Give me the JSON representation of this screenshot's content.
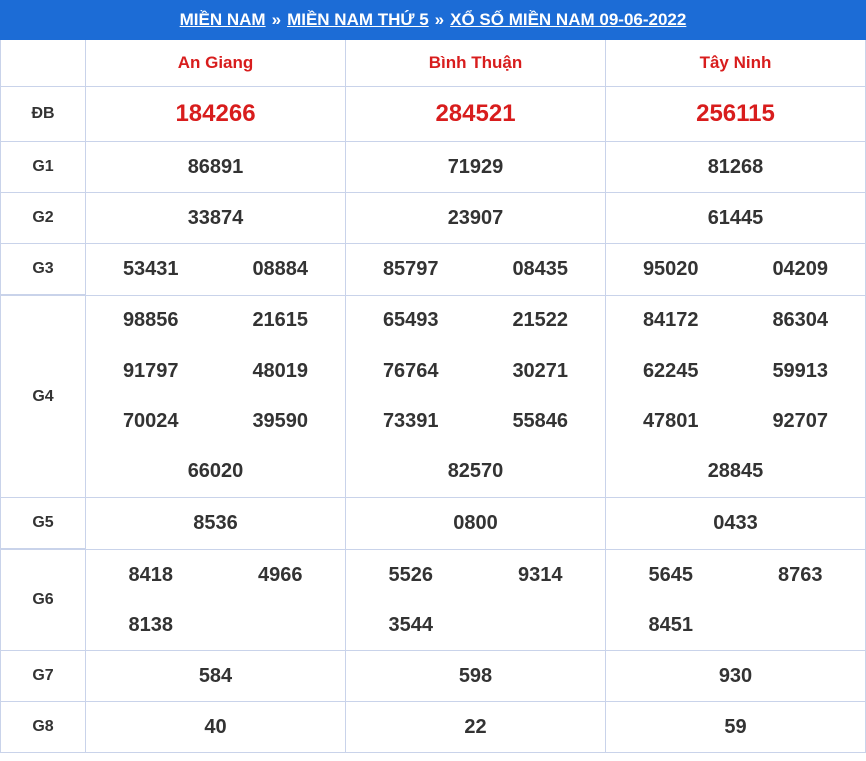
{
  "breadcrumb": {
    "part1": "MIỀN NAM",
    "sep1": "»",
    "part2": "MIỀN NAM THỨ 5",
    "sep2": "»",
    "part3": "XỔ SỐ MIỀN NAM 09-06-2022"
  },
  "provinces": [
    "An Giang",
    "Bình Thuận",
    "Tây Ninh"
  ],
  "prizes": {
    "db": {
      "label": "ĐB",
      "values": [
        "184266",
        "284521",
        "256115"
      ]
    },
    "g1": {
      "label": "G1",
      "values": [
        "86891",
        "71929",
        "81268"
      ]
    },
    "g2": {
      "label": "G2",
      "values": [
        "33874",
        "23907",
        "61445"
      ]
    },
    "g3": {
      "label": "G3",
      "values": [
        [
          "53431",
          "08884"
        ],
        [
          "85797",
          "08435"
        ],
        [
          "95020",
          "04209"
        ]
      ]
    },
    "g4": {
      "label": "G4",
      "values": [
        [
          "98856",
          "21615",
          "91797",
          "48019",
          "70024",
          "39590",
          "66020"
        ],
        [
          "65493",
          "21522",
          "76764",
          "30271",
          "73391",
          "55846",
          "82570"
        ],
        [
          "84172",
          "86304",
          "62245",
          "59913",
          "47801",
          "92707",
          "28845"
        ]
      ]
    },
    "g5": {
      "label": "G5",
      "values": [
        "8536",
        "0800",
        "0433"
      ]
    },
    "g6": {
      "label": "G6",
      "values": [
        [
          "8418",
          "4966",
          "8138"
        ],
        [
          "5526",
          "9314",
          "3544"
        ],
        [
          "5645",
          "8763",
          "8451"
        ]
      ]
    },
    "g7": {
      "label": "G7",
      "values": [
        "584",
        "598",
        "930"
      ]
    },
    "g8": {
      "label": "G8",
      "values": [
        "40",
        "22",
        "59"
      ]
    }
  },
  "colors": {
    "header_bg": "#1c6cd6",
    "accent_red": "#d81d1d",
    "border": "#c9d3ea"
  }
}
